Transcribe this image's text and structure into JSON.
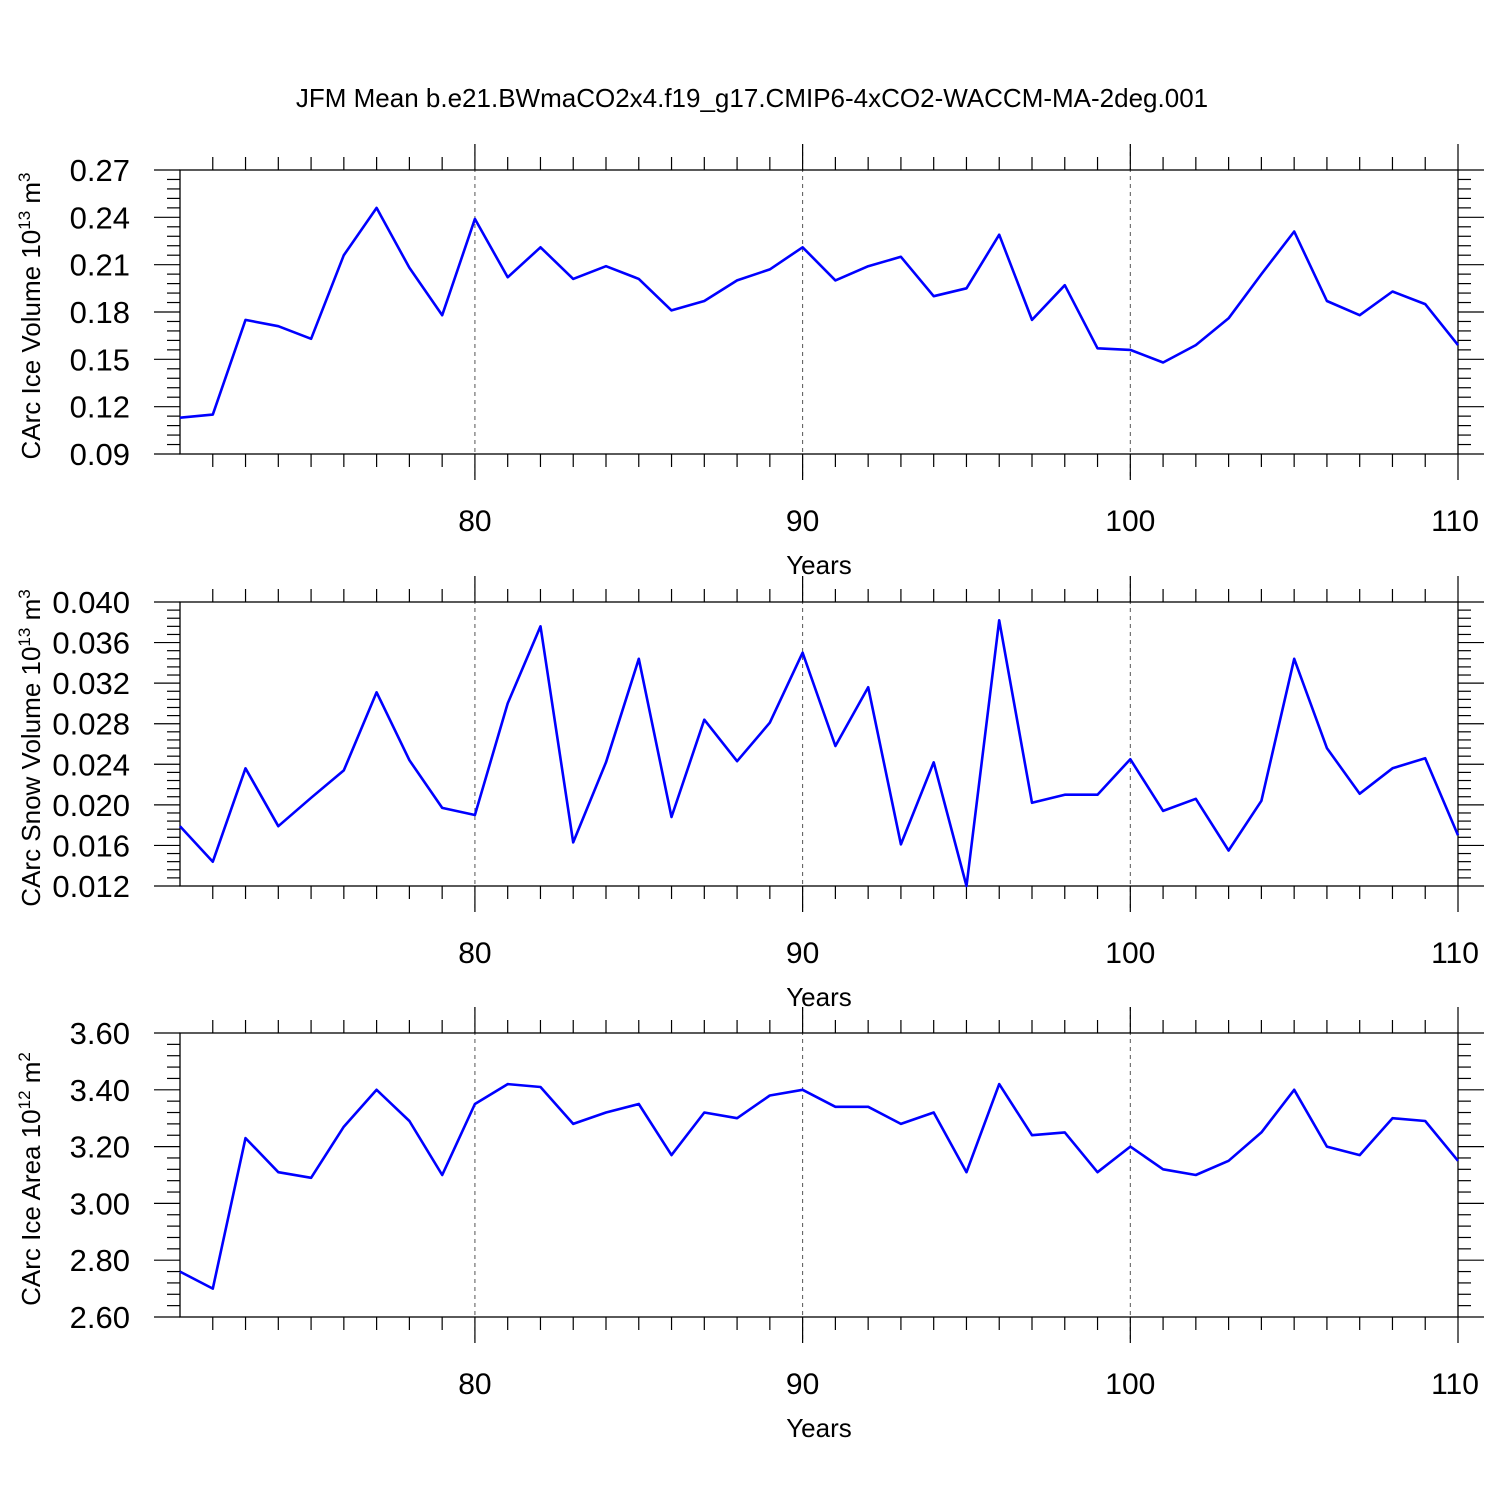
{
  "chart_data": {
    "title": "JFM Mean b.e21.BWmaCO2x4.f19_g17.CMIP6-4xCO2-WACCM-MA-2deg.001",
    "line_color": "#0000ff",
    "panels": [
      {
        "type": "line",
        "ylabel": "CArc Ice Volume 10",
        "ylabel_exp": "13",
        "ylabel_unit": " m",
        "ylabel_unit_exp": "3",
        "xlabel": "Years",
        "xlim": [
          71,
          110
        ],
        "ylim": [
          0.09,
          0.27
        ],
        "yticks": [
          0.09,
          0.12,
          0.15,
          0.18,
          0.21,
          0.24,
          0.27
        ],
        "ytick_labels": [
          "0.09",
          "0.12",
          "0.15",
          "0.18",
          "0.21",
          "0.24",
          "0.27"
        ],
        "xticks": [
          80,
          90,
          100,
          110
        ],
        "xtick_labels": [
          "80",
          "90",
          "100",
          "110"
        ],
        "grid_x": [
          80,
          90,
          100
        ],
        "x": [
          71,
          72,
          73,
          74,
          75,
          76,
          77,
          78,
          79,
          80,
          81,
          82,
          83,
          84,
          85,
          86,
          87,
          88,
          89,
          90,
          91,
          92,
          93,
          94,
          95,
          96,
          97,
          98,
          99,
          100,
          101,
          102,
          103,
          104,
          105,
          106,
          107,
          108,
          109,
          110
        ],
        "y": [
          0.113,
          0.115,
          0.175,
          0.171,
          0.163,
          0.216,
          0.246,
          0.208,
          0.178,
          0.239,
          0.202,
          0.221,
          0.201,
          0.209,
          0.201,
          0.181,
          0.187,
          0.2,
          0.207,
          0.221,
          0.2,
          0.209,
          0.215,
          0.19,
          0.195,
          0.229,
          0.175,
          0.197,
          0.157,
          0.156,
          0.148,
          0.159,
          0.176,
          0.204,
          0.231,
          0.187,
          0.178,
          0.193,
          0.185,
          0.159
        ]
      },
      {
        "type": "line",
        "ylabel": "CArc Snow Volume 10",
        "ylabel_exp": "13",
        "ylabel_unit": " m",
        "ylabel_unit_exp": "3",
        "xlabel": "Years",
        "xlim": [
          71,
          110
        ],
        "ylim": [
          0.012,
          0.04
        ],
        "yticks": [
          0.012,
          0.016,
          0.02,
          0.024,
          0.028,
          0.032,
          0.036,
          0.04
        ],
        "ytick_labels": [
          "0.012",
          "0.016",
          "0.020",
          "0.024",
          "0.028",
          "0.032",
          "0.036",
          "0.040"
        ],
        "xticks": [
          80,
          90,
          100,
          110
        ],
        "xtick_labels": [
          "80",
          "90",
          "100",
          "110"
        ],
        "grid_x": [
          80,
          90,
          100
        ],
        "x": [
          71,
          72,
          73,
          74,
          75,
          76,
          77,
          78,
          79,
          80,
          81,
          82,
          83,
          84,
          85,
          86,
          87,
          88,
          89,
          90,
          91,
          92,
          93,
          94,
          95,
          96,
          97,
          98,
          99,
          100,
          101,
          102,
          103,
          104,
          105,
          106,
          107,
          108,
          109,
          110
        ],
        "y": [
          0.0179,
          0.0144,
          0.0236,
          0.0179,
          0.0207,
          0.0234,
          0.0311,
          0.0244,
          0.0197,
          0.019,
          0.03,
          0.0376,
          0.0163,
          0.0242,
          0.0344,
          0.0188,
          0.0284,
          0.0243,
          0.0281,
          0.035,
          0.0258,
          0.0316,
          0.0161,
          0.0242,
          0.012,
          0.0382,
          0.0202,
          0.021,
          0.021,
          0.0245,
          0.0194,
          0.0206,
          0.0155,
          0.0204,
          0.0344,
          0.0256,
          0.0211,
          0.0236,
          0.0246,
          0.017
        ]
      },
      {
        "type": "line",
        "ylabel": "CArc Ice Area 10",
        "ylabel_exp": "12",
        "ylabel_unit": " m",
        "ylabel_unit_exp": "2",
        "xlabel": "Years",
        "xlim": [
          71,
          110
        ],
        "ylim": [
          2.6,
          3.6
        ],
        "yticks": [
          2.6,
          2.8,
          3.0,
          3.2,
          3.4,
          3.6
        ],
        "ytick_labels": [
          "2.60",
          "2.80",
          "3.00",
          "3.20",
          "3.40",
          "3.60"
        ],
        "xticks": [
          80,
          90,
          100,
          110
        ],
        "xtick_labels": [
          "80",
          "90",
          "100",
          "110"
        ],
        "grid_x": [
          80,
          90,
          100
        ],
        "x": [
          71,
          72,
          73,
          74,
          75,
          76,
          77,
          78,
          79,
          80,
          81,
          82,
          83,
          84,
          85,
          86,
          87,
          88,
          89,
          90,
          91,
          92,
          93,
          94,
          95,
          96,
          97,
          98,
          99,
          100,
          101,
          102,
          103,
          104,
          105,
          106,
          107,
          108,
          109,
          110
        ],
        "y": [
          2.76,
          2.7,
          3.23,
          3.11,
          3.09,
          3.27,
          3.4,
          3.29,
          3.1,
          3.35,
          3.42,
          3.41,
          3.28,
          3.32,
          3.35,
          3.17,
          3.32,
          3.3,
          3.38,
          3.4,
          3.34,
          3.34,
          3.28,
          3.32,
          3.11,
          3.42,
          3.24,
          3.25,
          3.11,
          3.2,
          3.12,
          3.1,
          3.15,
          3.25,
          3.4,
          3.2,
          3.17,
          3.3,
          3.29,
          3.15
        ]
      }
    ]
  }
}
